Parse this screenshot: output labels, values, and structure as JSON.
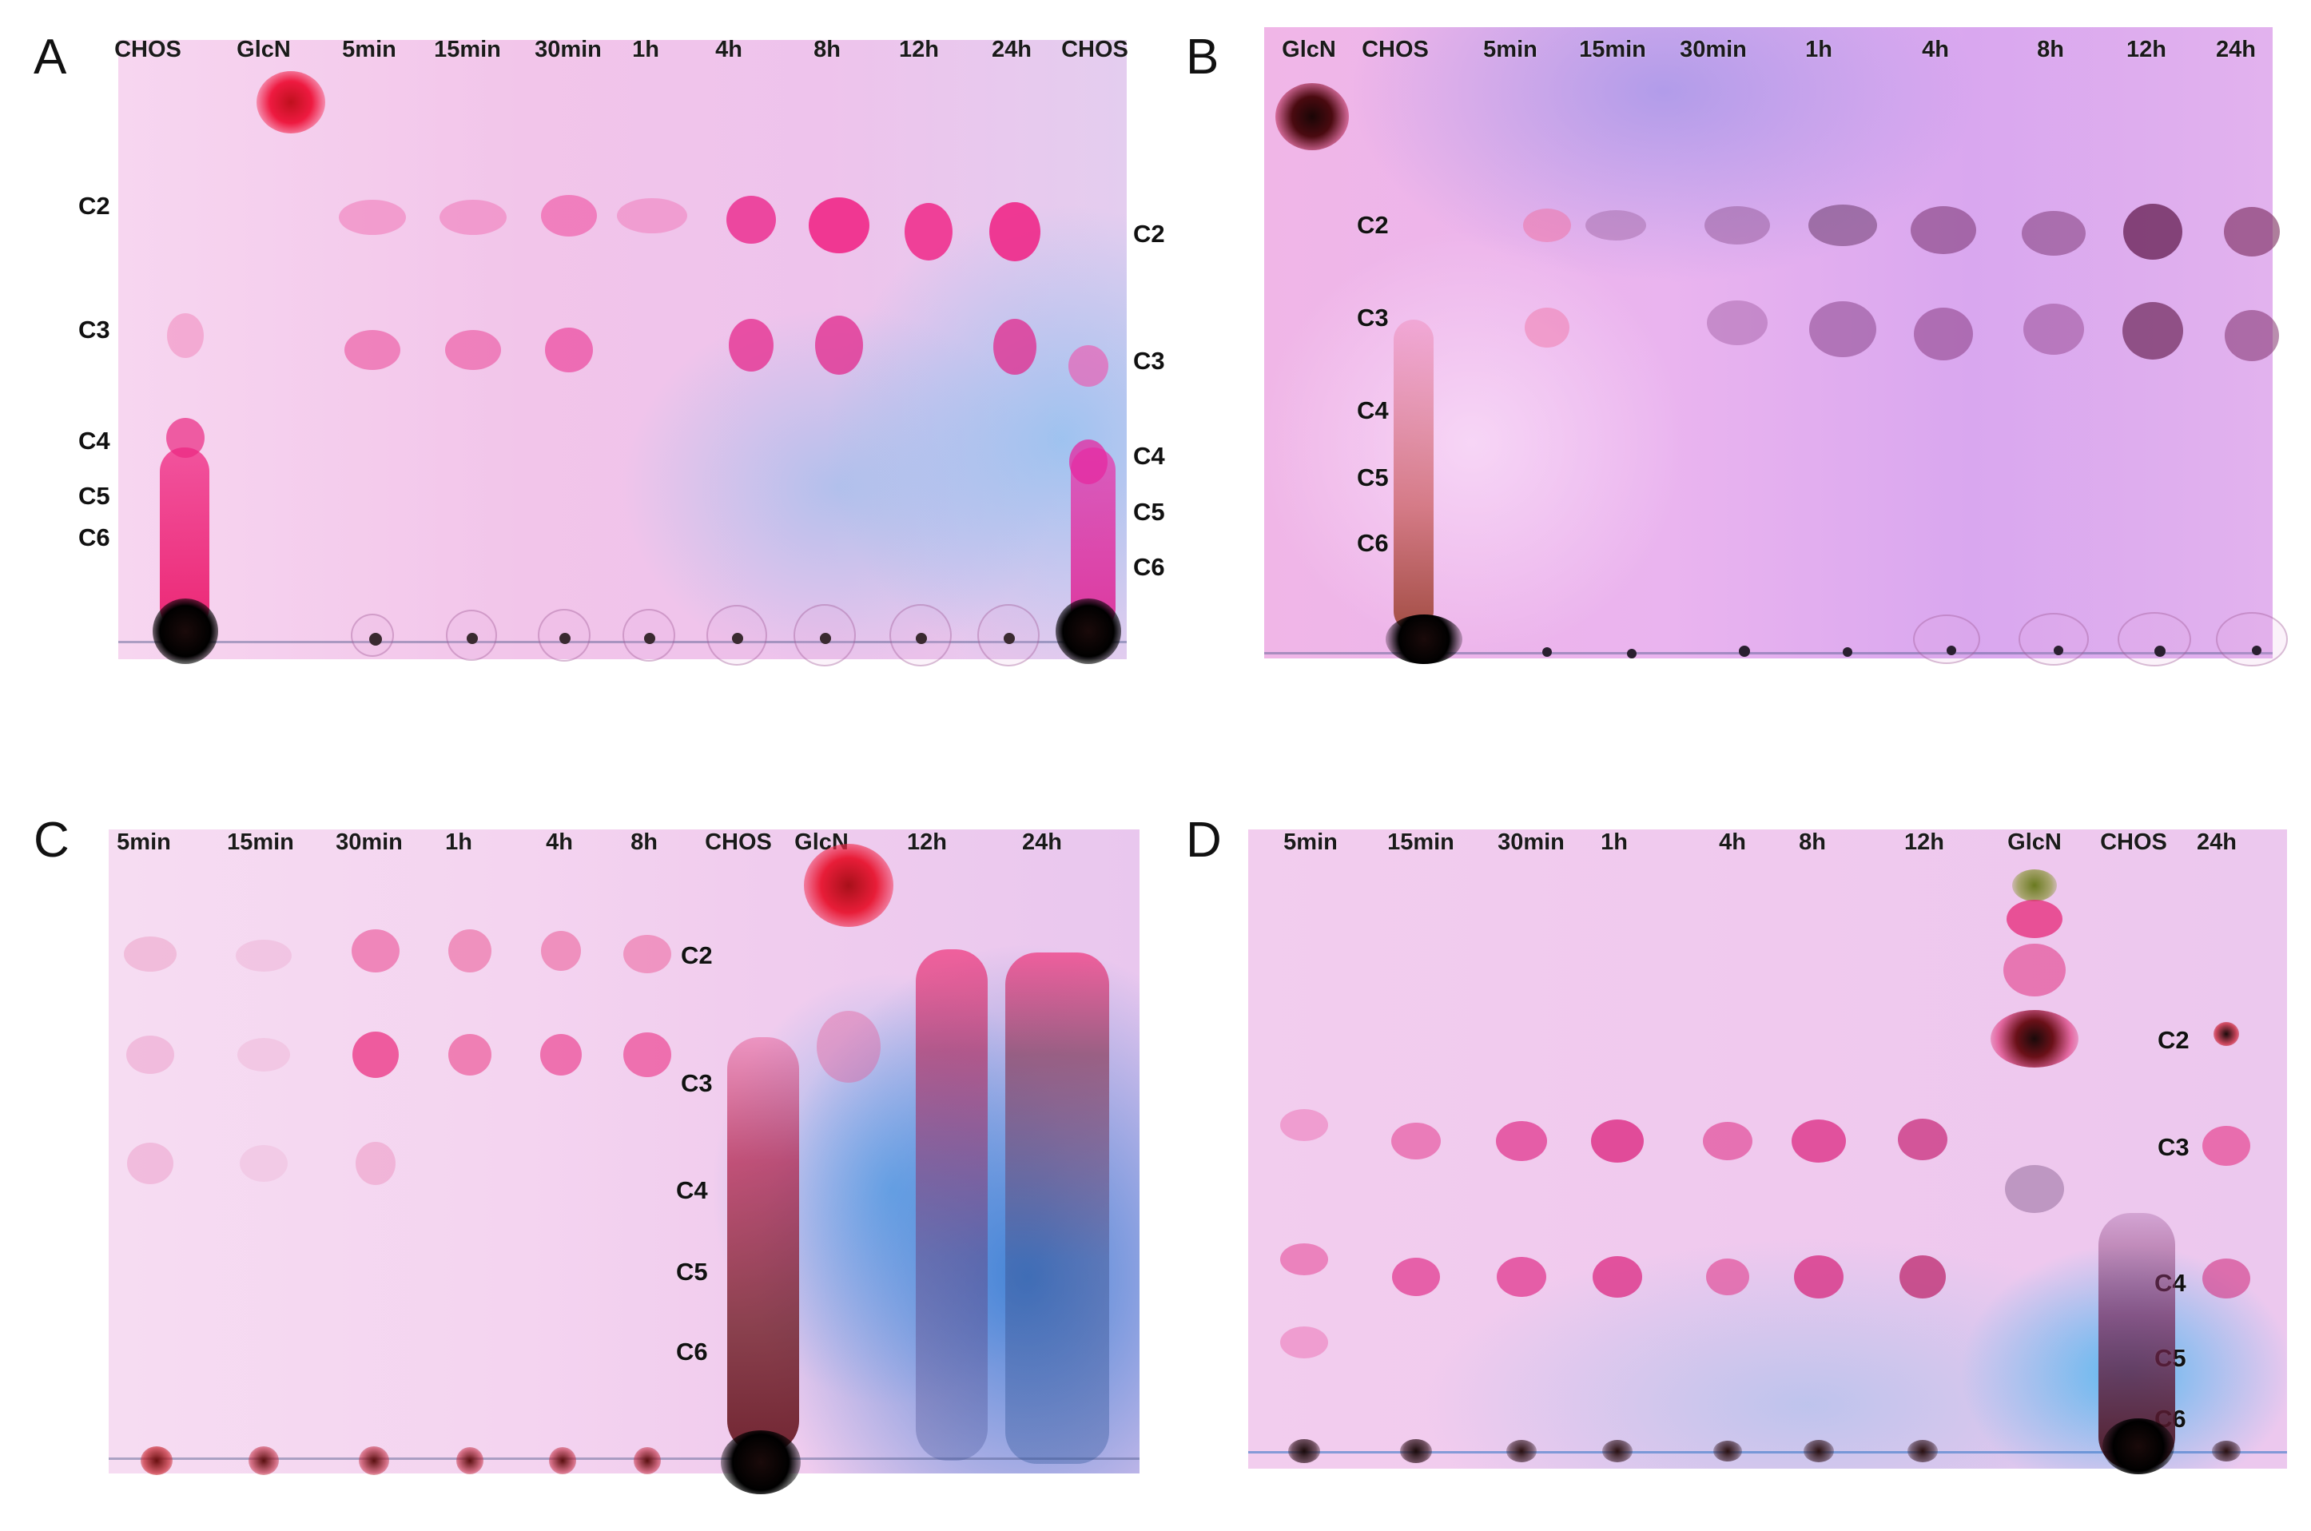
{
  "panels": [
    {
      "id": "A",
      "letter": "A",
      "lanes": [
        "CHOS",
        "GlcN",
        "5min",
        "15min",
        "30min",
        "1h",
        "4h",
        "8h",
        "12h",
        "24h",
        "CHOS"
      ],
      "left_labels": [
        "C2",
        "C3",
        "C4",
        "C5",
        "C6"
      ],
      "right_labels": [
        "C2",
        "C3",
        "C4",
        "C5",
        "C6"
      ],
      "plate_color": "#f3c9ec",
      "tint_color": "#a9c8ef"
    },
    {
      "id": "B",
      "letter": "B",
      "lanes": [
        "GlcN",
        "CHOS",
        "5min",
        "15min",
        "30min",
        "1h",
        "4h",
        "8h",
        "12h",
        "24h"
      ],
      "left_labels": [
        "C2",
        "C3",
        "C4",
        "C5",
        "C6"
      ],
      "right_labels": [],
      "plate_color": "#e8b6ef",
      "tint_color": "#b29ae6"
    },
    {
      "id": "C",
      "letter": "C",
      "lanes": [
        "5min",
        "15min",
        "30min",
        "1h",
        "4h",
        "8h",
        "CHOS",
        "GlcN",
        "12h",
        "24h"
      ],
      "left_labels": [
        "C2",
        "C3",
        "C4",
        "C5",
        "C6"
      ],
      "right_labels": [],
      "plate_color": "#f4d2f0",
      "tint_color": "#3f8fd6"
    },
    {
      "id": "D",
      "letter": "D",
      "lanes": [
        "5min",
        "15min",
        "30min",
        "1h",
        "4h",
        "8h",
        "12h",
        "GlcN",
        "CHOS",
        "24h"
      ],
      "left_labels": [],
      "right_labels": [
        "C2",
        "C3",
        "C4",
        "C5",
        "C6"
      ],
      "plate_color": "#f2cdef",
      "tint_color": "#52b4ec"
    }
  ]
}
